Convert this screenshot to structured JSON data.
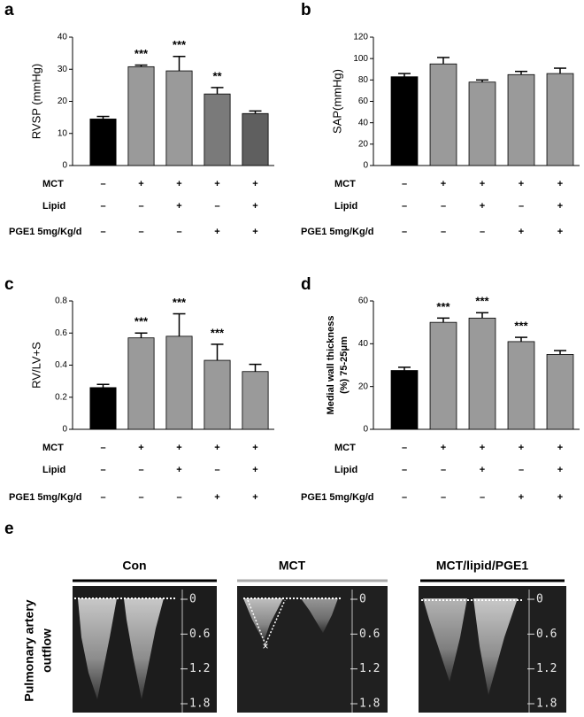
{
  "chart_data": [
    {
      "type": "bar",
      "panel": "a",
      "ylabel": [
        "RVSP (mmHg)"
      ],
      "ylim": [
        0,
        40
      ],
      "yticks": [
        0,
        10,
        20,
        30,
        40
      ],
      "values": [
        14.5,
        30.8,
        29.5,
        22.3,
        16.2
      ],
      "errors": [
        0.8,
        0.5,
        4.5,
        2,
        0.8
      ],
      "colors": [
        "#000000",
        "#9a9a9a",
        "#9a9a9a",
        "#7a7a7a",
        "#5f5f5f"
      ],
      "significance": [
        null,
        "***",
        "***",
        "**",
        null
      ],
      "treatments": [
        {
          "label": "MCT",
          "signs": [
            "–",
            "+",
            "+",
            "+",
            "+"
          ]
        },
        {
          "label": "Lipid",
          "signs": [
            "–",
            "–",
            "+",
            "–",
            "+"
          ]
        },
        {
          "label": "PGE1 5mg/Kg/d",
          "signs": [
            "–",
            "–",
            "–",
            "+",
            "+"
          ]
        }
      ]
    },
    {
      "type": "bar",
      "panel": "b",
      "ylabel": [
        "SAP(mmHg)"
      ],
      "ylim": [
        0,
        120
      ],
      "yticks": [
        0,
        20,
        40,
        60,
        80,
        100,
        120
      ],
      "values": [
        83,
        95,
        78,
        85,
        86
      ],
      "errors": [
        3,
        6,
        2,
        3,
        5
      ],
      "colors": [
        "#000000",
        "#9a9a9a",
        "#9a9a9a",
        "#9a9a9a",
        "#9a9a9a"
      ],
      "significance": [
        null,
        null,
        null,
        null,
        null
      ],
      "treatments": [
        {
          "label": "MCT",
          "signs": [
            "–",
            "+",
            "+",
            "+",
            "+"
          ]
        },
        {
          "label": "Lipid",
          "signs": [
            "–",
            "–",
            "+",
            "–",
            "+"
          ]
        },
        {
          "label": "PGE1 5mg/Kg/d",
          "signs": [
            "–",
            "–",
            "–",
            "+",
            "+"
          ]
        }
      ]
    },
    {
      "type": "bar",
      "panel": "c",
      "ylabel": [
        "RV/LV+S"
      ],
      "ylim": [
        0,
        0.8
      ],
      "yticks": [
        0,
        0.2,
        0.4,
        0.6,
        0.8
      ],
      "values": [
        0.26,
        0.57,
        0.58,
        0.43,
        0.36
      ],
      "errors": [
        0.02,
        0.03,
        0.14,
        0.1,
        0.045
      ],
      "colors": [
        "#000000",
        "#9a9a9a",
        "#9a9a9a",
        "#9a9a9a",
        "#9a9a9a"
      ],
      "significance": [
        null,
        "***",
        "***",
        "***",
        null
      ],
      "treatments": [
        {
          "label": "MCT",
          "signs": [
            "–",
            "+",
            "+",
            "+",
            "+"
          ]
        },
        {
          "label": "Lipid",
          "signs": [
            "–",
            "–",
            "+",
            "–",
            "+"
          ]
        },
        {
          "label": "PGE1 5mg/Kg/d",
          "signs": [
            "–",
            "–",
            "–",
            "+",
            "+"
          ]
        }
      ]
    },
    {
      "type": "bar",
      "panel": "d",
      "ylabel": [
        "Medial wall thickness",
        "(%) 75-25μm"
      ],
      "ylim": [
        0,
        60
      ],
      "yticks": [
        0,
        20,
        40,
        60
      ],
      "values": [
        27.5,
        50,
        52,
        41,
        35
      ],
      "errors": [
        1.5,
        2,
        2.5,
        2,
        1.8
      ],
      "colors": [
        "#000000",
        "#9a9a9a",
        "#9a9a9a",
        "#9a9a9a",
        "#9a9a9a"
      ],
      "significance": [
        null,
        "***",
        "***",
        "***",
        null
      ],
      "treatments": [
        {
          "label": "MCT",
          "signs": [
            "–",
            "+",
            "+",
            "+",
            "+"
          ]
        },
        {
          "label": "Lipid",
          "signs": [
            "–",
            "–",
            "+",
            "–",
            "+"
          ]
        },
        {
          "label": "PGE1 5mg/Kg/d",
          "signs": [
            "–",
            "–",
            "–",
            "+",
            "+"
          ]
        }
      ]
    }
  ],
  "panel_e": {
    "panel": "e",
    "row_label": [
      "Pulmonary artery",
      "outflow"
    ],
    "groups": [
      "Con",
      "MCT",
      "MCT/lipid/PGE1"
    ],
    "scale": [
      0,
      0.6,
      1.2,
      1.8
    ]
  }
}
